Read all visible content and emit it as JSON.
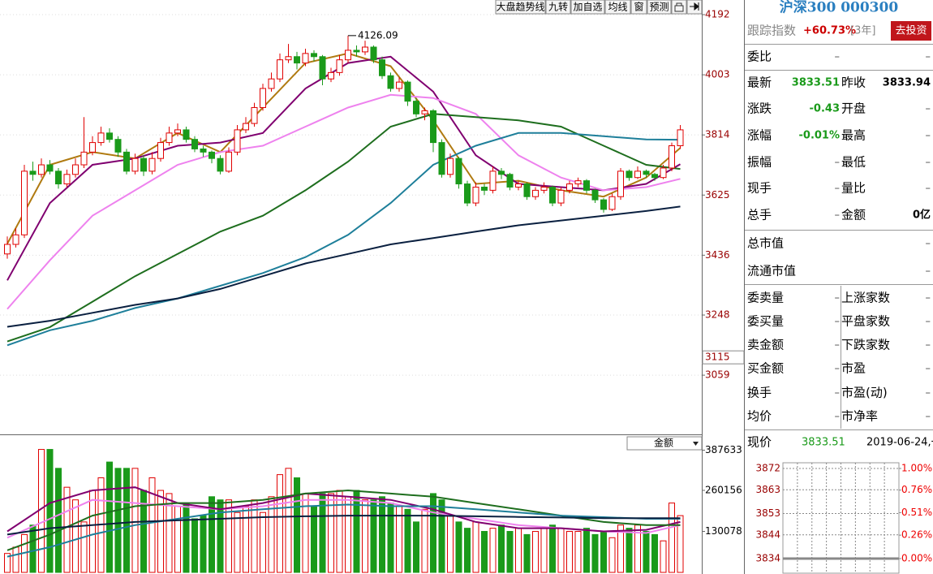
{
  "toolbar": {
    "items": [
      "大盘趋势线",
      "九转",
      "加自选",
      "均线",
      "窗",
      "预测"
    ]
  },
  "chart_data": [
    {
      "type": "candlestick",
      "up_color": "#e00000",
      "down_color": "#1a9a1a",
      "ylim": [
        2873,
        4238
      ],
      "yticks": [
        4192,
        4003,
        3814,
        3625,
        3436,
        3248,
        3059
      ],
      "grid": true,
      "peak": 4126.09,
      "price_marker": 3115,
      "ohlc": [
        [
          3440,
          3495,
          3425,
          3470
        ],
        [
          3470,
          3520,
          3460,
          3500
        ],
        [
          3500,
          3720,
          3490,
          3700
        ],
        [
          3700,
          3730,
          3670,
          3690
        ],
        [
          3690,
          3740,
          3680,
          3720
        ],
        [
          3720,
          3735,
          3690,
          3700
        ],
        [
          3700,
          3710,
          3645,
          3660
        ],
        [
          3660,
          3705,
          3650,
          3690
        ],
        [
          3690,
          3740,
          3680,
          3720
        ],
        [
          3720,
          3870,
          3710,
          3760
        ],
        [
          3760,
          3810,
          3750,
          3790
        ],
        [
          3790,
          3840,
          3780,
          3820
        ],
        [
          3820,
          3835,
          3790,
          3800
        ],
        [
          3800,
          3810,
          3745,
          3760
        ],
        [
          3760,
          3770,
          3690,
          3700
        ],
        [
          3700,
          3755,
          3690,
          3740
        ],
        [
          3740,
          3750,
          3685,
          3700
        ],
        [
          3700,
          3760,
          3690,
          3740
        ],
        [
          3740,
          3805,
          3730,
          3790
        ],
        [
          3790,
          3840,
          3780,
          3820
        ],
        [
          3820,
          3850,
          3810,
          3830
        ],
        [
          3830,
          3840,
          3790,
          3800
        ],
        [
          3800,
          3810,
          3760,
          3770
        ],
        [
          3770,
          3780,
          3745,
          3760
        ],
        [
          3760,
          3765,
          3725,
          3740
        ],
        [
          3740,
          3750,
          3690,
          3700
        ],
        [
          3700,
          3775,
          3695,
          3760
        ],
        [
          3760,
          3845,
          3750,
          3830
        ],
        [
          3830,
          3870,
          3820,
          3850
        ],
        [
          3850,
          3915,
          3840,
          3900
        ],
        [
          3900,
          3975,
          3890,
          3960
        ],
        [
          3960,
          4010,
          3950,
          3990
        ],
        [
          3990,
          4070,
          3980,
          4050
        ],
        [
          4050,
          4100,
          4040,
          4060
        ],
        [
          4060,
          4075,
          4020,
          4040
        ],
        [
          4040,
          4085,
          4030,
          4070
        ],
        [
          4070,
          4080,
          4045,
          4060
        ],
        [
          4060,
          4065,
          3970,
          3990
        ],
        [
          3990,
          4025,
          3980,
          4010
        ],
        [
          4010,
          4065,
          4000,
          4050
        ],
        [
          4050,
          4126.09,
          4040,
          4080
        ],
        [
          4080,
          4095,
          4060,
          4075
        ],
        [
          4075,
          4110,
          4065,
          4090
        ],
        [
          4090,
          4095,
          4040,
          4050
        ],
        [
          4050,
          4060,
          3990,
          4000
        ],
        [
          4000,
          4010,
          3950,
          3960
        ],
        [
          3960,
          3995,
          3950,
          3980
        ],
        [
          3980,
          3985,
          3905,
          3920
        ],
        [
          3920,
          3930,
          3870,
          3880
        ],
        [
          3880,
          3900,
          3860,
          3890
        ],
        [
          3890,
          3895,
          3760,
          3790
        ],
        [
          3790,
          3800,
          3680,
          3690
        ],
        [
          3690,
          3755,
          3680,
          3740
        ],
        [
          3740,
          3745,
          3645,
          3660
        ],
        [
          3660,
          3670,
          3590,
          3600
        ],
        [
          3600,
          3665,
          3590,
          3650
        ],
        [
          3650,
          3660,
          3625,
          3640
        ],
        [
          3640,
          3715,
          3630,
          3700
        ],
        [
          3700,
          3710,
          3675,
          3690
        ],
        [
          3690,
          3695,
          3640,
          3650
        ],
        [
          3650,
          3670,
          3640,
          3660
        ],
        [
          3660,
          3665,
          3610,
          3620
        ],
        [
          3620,
          3650,
          3610,
          3640
        ],
        [
          3640,
          3665,
          3630,
          3650
        ],
        [
          3650,
          3655,
          3590,
          3600
        ],
        [
          3600,
          3650,
          3590,
          3640
        ],
        [
          3640,
          3670,
          3630,
          3660
        ],
        [
          3660,
          3680,
          3650,
          3670
        ],
        [
          3670,
          3675,
          3630,
          3640
        ],
        [
          3640,
          3645,
          3600,
          3610
        ],
        [
          3610,
          3615,
          3570,
          3580
        ],
        [
          3580,
          3630,
          3575,
          3620
        ],
        [
          3620,
          3710,
          3610,
          3700
        ],
        [
          3700,
          3705,
          3670,
          3680
        ],
        [
          3680,
          3715,
          3675,
          3700
        ],
        [
          3700,
          3705,
          3680,
          3690
        ],
        [
          3690,
          3695,
          3670,
          3680
        ],
        [
          3680,
          3720,
          3675,
          3710
        ],
        [
          3710,
          3790,
          3700,
          3780
        ],
        [
          3780,
          3845,
          3770,
          3830
        ]
      ],
      "ma_x": [
        0,
        5,
        10,
        15,
        20,
        25,
        30,
        35,
        40,
        45,
        50,
        55,
        60,
        65,
        70,
        75,
        79
      ],
      "series": [
        {
          "color": "#b07a10",
          "values": [
            3472,
            3720,
            3760,
            3740,
            3820,
            3760,
            3900,
            4040,
            4070,
            4030,
            3860,
            3660,
            3670,
            3640,
            3620,
            3680,
            3773
          ]
        },
        {
          "color": "#800070",
          "values": [
            3357,
            3600,
            3720,
            3740,
            3780,
            3790,
            3820,
            3960,
            4040,
            4060,
            3950,
            3750,
            3660,
            3650,
            3640,
            3660,
            3722
          ]
        },
        {
          "color": "#ee82ee",
          "values": [
            3267,
            3420,
            3560,
            3640,
            3720,
            3760,
            3780,
            3840,
            3900,
            3940,
            3930,
            3880,
            3750,
            3680,
            3640,
            3650,
            3676
          ]
        },
        {
          "color": "#1e6e1e",
          "values": [
            3165,
            3210,
            3290,
            3370,
            3440,
            3510,
            3560,
            3640,
            3730,
            3840,
            3880,
            3870,
            3860,
            3840,
            3780,
            3720,
            3707
          ]
        },
        {
          "color": "#1e7f9a",
          "values": [
            3153,
            3200,
            3230,
            3270,
            3300,
            3340,
            3380,
            3430,
            3500,
            3600,
            3720,
            3780,
            3820,
            3820,
            3810,
            3800,
            3799
          ]
        },
        {
          "color": "#0a2040",
          "values": [
            3211,
            3230,
            3255,
            3280,
            3300,
            3330,
            3370,
            3410,
            3440,
            3470,
            3490,
            3510,
            3530,
            3545,
            3560,
            3575,
            3589
          ]
        }
      ]
    },
    {
      "type": "bar",
      "dropdown": "金额",
      "ylim": [
        0,
        394000
      ],
      "yticks": [
        387633,
        260156,
        130078
      ],
      "values": [
        60000,
        80000,
        120000,
        150000,
        390000,
        390000,
        330000,
        270000,
        230000,
        160000,
        260000,
        300000,
        350000,
        330000,
        330000,
        330000,
        260000,
        300000,
        260000,
        250000,
        210000,
        220000,
        170000,
        180000,
        240000,
        230000,
        230000,
        190000,
        210000,
        230000,
        190000,
        240000,
        310000,
        330000,
        300000,
        250000,
        210000,
        250000,
        250000,
        260000,
        240000,
        260000,
        230000,
        230000,
        240000,
        220000,
        210000,
        200000,
        160000,
        200000,
        250000,
        230000,
        180000,
        160000,
        140000,
        160000,
        130000,
        140000,
        150000,
        130000,
        140000,
        120000,
        130000,
        140000,
        150000,
        140000,
        130000,
        130000,
        140000,
        120000,
        130000,
        110000,
        150000,
        140000,
        150000,
        130000,
        120000,
        100000,
        220000,
        180000
      ],
      "ma_x": [
        0,
        5,
        10,
        15,
        20,
        25,
        30,
        35,
        40,
        45,
        50,
        55,
        60,
        65,
        70,
        75,
        79
      ],
      "series": [
        {
          "color": "#ee82ee",
          "values": [
            110000,
            170000,
            230000,
            220000,
            210000,
            200000,
            210000,
            230000,
            230000,
            220000,
            190000,
            170000,
            150000,
            140000,
            130000,
            125000,
            150000
          ]
        },
        {
          "color": "#800070",
          "values": [
            130000,
            220000,
            260000,
            270000,
            220000,
            200000,
            220000,
            250000,
            240000,
            230000,
            200000,
            160000,
            140000,
            140000,
            130000,
            135000,
            160000
          ]
        },
        {
          "color": "#1e6e1e",
          "values": [
            70000,
            120000,
            180000,
            210000,
            220000,
            220000,
            230000,
            250000,
            260000,
            250000,
            240000,
            220000,
            200000,
            180000,
            160000,
            150000,
            150000
          ]
        },
        {
          "color": "#1e7f9a",
          "values": [
            50000,
            80000,
            120000,
            150000,
            170000,
            190000,
            200000,
            210000,
            215000,
            210000,
            210000,
            200000,
            190000,
            180000,
            175000,
            170000,
            170000
          ]
        },
        {
          "color": "#0a2040",
          "values": [
            120000,
            140000,
            150000,
            160000,
            165000,
            170000,
            175000,
            178000,
            180000,
            180000,
            180000,
            178000,
            176000,
            174000,
            172000,
            172000,
            172000
          ]
        }
      ]
    },
    {
      "type": "line",
      "ylim": [
        3834,
        3872
      ],
      "yticks": [
        3872,
        3863,
        3853,
        3844,
        3834
      ],
      "y2lim": [
        0,
        1
      ],
      "y2ticks": [
        {
          "value": 1,
          "label": "1.00%"
        },
        {
          "value": 0.76,
          "label": "0.76%"
        },
        {
          "value": 0.51,
          "label": "0.51%"
        },
        {
          "value": 0.26,
          "label": "0.26%"
        },
        {
          "value": 0,
          "label": "0.00%"
        }
      ],
      "grid": true
    }
  ],
  "quote": {
    "title": "沪深300 000300",
    "track_label": "跟踪指数",
    "track_value": "+60.73%",
    "track_period": "[3年]",
    "invest_button": "去投资",
    "rows": [
      [
        "委比",
        "–",
        "–"
      ],
      [
        "最新",
        "3833.51",
        "昨收",
        "3833.94"
      ],
      [
        "涨跌",
        "-0.43",
        "开盘",
        "–"
      ],
      [
        "涨幅",
        "-0.01%",
        "最高",
        "–"
      ],
      [
        "振幅",
        "–",
        "最低",
        "–"
      ],
      [
        "现手",
        "–",
        "量比",
        "–"
      ],
      [
        "总手",
        "–",
        "金额",
        "0亿"
      ],
      [
        "总市值",
        "–"
      ],
      [
        "流通市值",
        "–"
      ],
      [
        "委卖量",
        "–",
        "上涨家数",
        "–"
      ],
      [
        "委买量",
        "–",
        "平盘家数",
        "–"
      ],
      [
        "卖金额",
        "–",
        "下跌家数",
        "–"
      ],
      [
        "买金额",
        "–",
        "市盈",
        "–"
      ],
      [
        "换手",
        "–",
        "市盈(动)",
        "–"
      ],
      [
        "均价",
        "–",
        "市净率",
        "–"
      ]
    ],
    "now_label": "现价",
    "now_value": "3833.51",
    "date": "2019-06-24,一"
  }
}
